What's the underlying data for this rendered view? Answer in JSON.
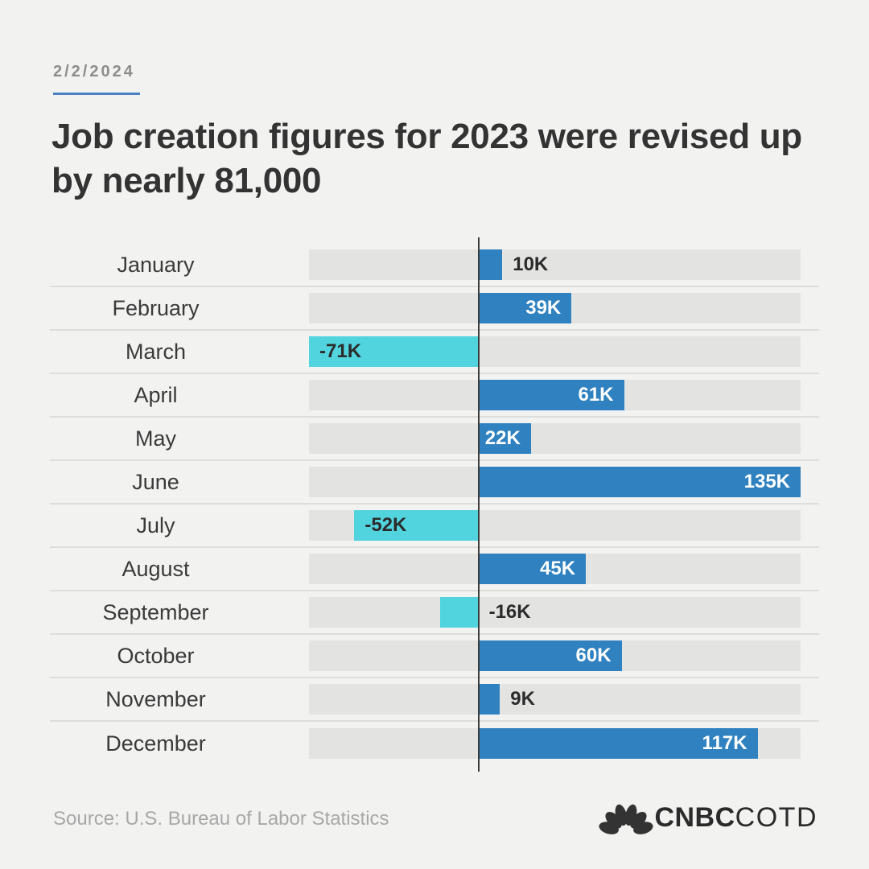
{
  "header": {
    "date": "2/2/2024",
    "title": "Job creation figures for 2023 were revised up by nearly 81,000"
  },
  "chart_data": {
    "type": "bar",
    "orientation": "horizontal",
    "title": "Job creation figures for 2023 were revised up by nearly 81,000",
    "categories": [
      "January",
      "February",
      "March",
      "April",
      "May",
      "June",
      "July",
      "August",
      "September",
      "October",
      "November",
      "December"
    ],
    "values": [
      10,
      39,
      -71,
      61,
      22,
      135,
      -52,
      45,
      -16,
      60,
      9,
      117
    ],
    "labels": [
      "10K",
      "39K",
      "-71K",
      "61K",
      "22K",
      "135K",
      "-52K",
      "45K",
      "-16K",
      "60K",
      "9K",
      "117K"
    ],
    "xlim": [
      -71,
      135
    ],
    "grid": false,
    "legend": false,
    "colors": {
      "positive": "#2f81c0",
      "negative": "#52d4de",
      "track": "#e3e3e2",
      "axis": "#3c3c3c",
      "label_inside_positive": "#ffffff",
      "label_dark": "#2b2b2b"
    }
  },
  "footer": {
    "source": "Source: U.S. Bureau of Labor Statistics",
    "logo_brand": "CNBC",
    "logo_product": "COTD",
    "logo_icon": "nbc-peacock-icon"
  }
}
